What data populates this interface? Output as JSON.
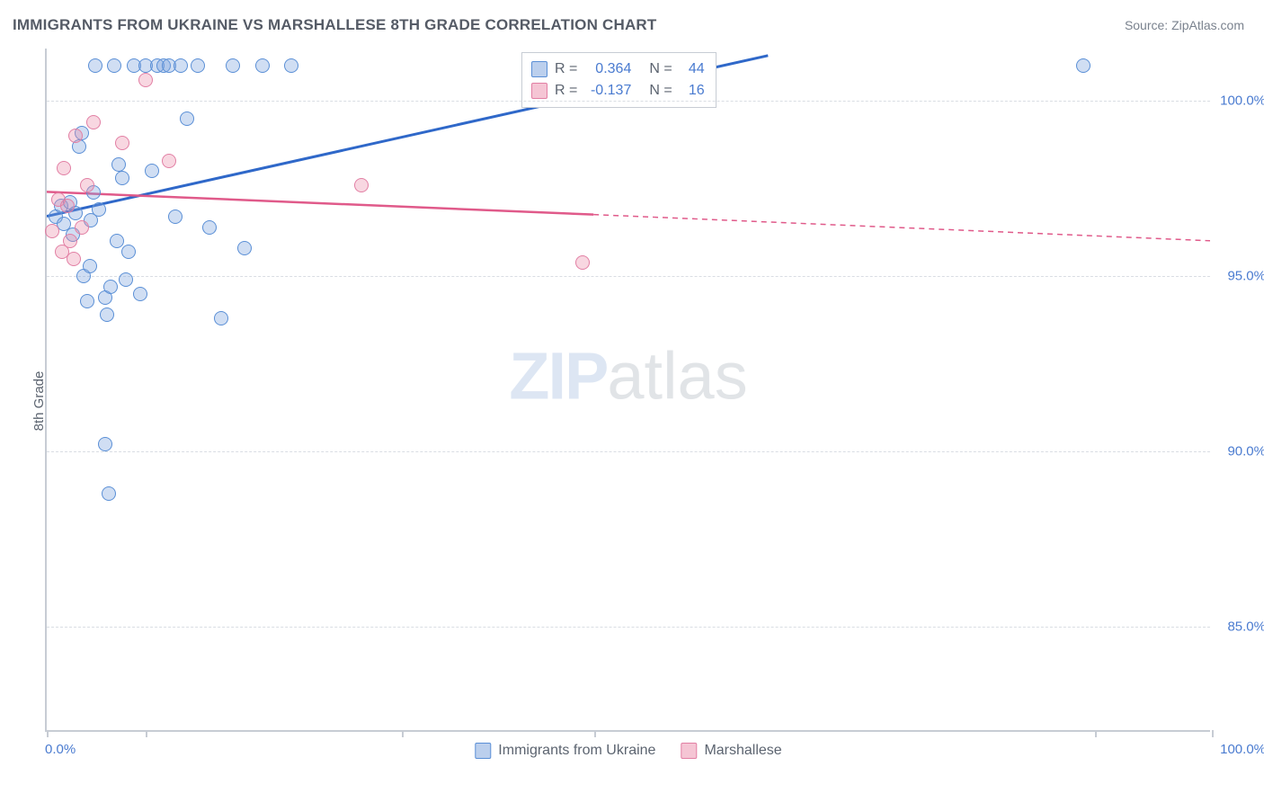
{
  "title": "IMMIGRANTS FROM UKRAINE VS MARSHALLESE 8TH GRADE CORRELATION CHART",
  "source_label": "Source: ",
  "source_name": "ZipAtlas.com",
  "ylabel": "8th Grade",
  "watermark_a": "ZIP",
  "watermark_b": "atlas",
  "chart": {
    "type": "scatter-correlation",
    "background_color": "#ffffff",
    "axis_color": "#c7ccd4",
    "grid_color": "#d9dde3",
    "text_color": "#5c6470",
    "value_color": "#4a7bd0",
    "xlim": [
      0,
      100
    ],
    "ylim": [
      82,
      101.5
    ],
    "xticks": [
      0,
      8.5,
      30.5,
      47,
      90,
      100
    ],
    "xtick_labels": {
      "0": "0.0%",
      "100": "100.0%"
    },
    "yticks": [
      85,
      90,
      95,
      100
    ],
    "ytick_labels": [
      "85.0%",
      "90.0%",
      "95.0%",
      "100.0%"
    ],
    "marker_size": 16,
    "series": [
      {
        "key": "ukraine",
        "label": "Immigrants from Ukraine",
        "color_fill": "rgba(120,160,220,0.35)",
        "color_stroke": "#5a8fd6",
        "R": "0.364",
        "N": "44",
        "trend": {
          "x1": 0,
          "y1": 96.7,
          "x2": 62,
          "y2": 101.3,
          "dashed_from_x": 62,
          "stroke": "#2f68c9",
          "width": 3
        },
        "points": [
          [
            0.8,
            96.7
          ],
          [
            1.2,
            97.0
          ],
          [
            1.5,
            96.5
          ],
          [
            2.0,
            97.1
          ],
          [
            2.2,
            96.2
          ],
          [
            2.5,
            96.8
          ],
          [
            2.8,
            98.7
          ],
          [
            3.0,
            99.1
          ],
          [
            3.2,
            95.0
          ],
          [
            3.5,
            94.3
          ],
          [
            3.8,
            96.6
          ],
          [
            4.0,
            97.4
          ],
          [
            4.2,
            101.0
          ],
          [
            4.5,
            96.9
          ],
          [
            5.0,
            94.4
          ],
          [
            5.2,
            93.9
          ],
          [
            5.5,
            94.7
          ],
          [
            5.8,
            101.0
          ],
          [
            6.0,
            96.0
          ],
          [
            6.2,
            98.2
          ],
          [
            6.5,
            97.8
          ],
          [
            7.0,
            95.7
          ],
          [
            7.5,
            101.0
          ],
          [
            8.0,
            94.5
          ],
          [
            8.5,
            101.0
          ],
          [
            9.0,
            98.0
          ],
          [
            9.5,
            101.0
          ],
          [
            10.0,
            101.0
          ],
          [
            10.5,
            101.0
          ],
          [
            11.0,
            96.7
          ],
          [
            11.5,
            101.0
          ],
          [
            12.0,
            99.5
          ],
          [
            13.0,
            101.0
          ],
          [
            14.0,
            96.4
          ],
          [
            15.0,
            93.8
          ],
          [
            16.0,
            101.0
          ],
          [
            17.0,
            95.8
          ],
          [
            18.5,
            101.0
          ],
          [
            21.0,
            101.0
          ],
          [
            89.0,
            101.0
          ],
          [
            5.0,
            90.2
          ],
          [
            5.3,
            88.8
          ],
          [
            3.7,
            95.3
          ],
          [
            6.8,
            94.9
          ]
        ]
      },
      {
        "key": "marshallese",
        "label": "Marshallese",
        "color_fill": "rgba(235,140,170,0.35)",
        "color_stroke": "#e27fa4",
        "R": "-0.137",
        "N": "16",
        "trend": {
          "x1": 0,
          "y1": 97.4,
          "x2": 47,
          "y2": 96.75,
          "dashed_to_x": 100,
          "dashed_y2": 96.0,
          "stroke": "#e05a8a",
          "width": 2.5
        },
        "points": [
          [
            0.5,
            96.3
          ],
          [
            1.0,
            97.2
          ],
          [
            1.3,
            95.7
          ],
          [
            1.5,
            98.1
          ],
          [
            1.8,
            97.0
          ],
          [
            2.0,
            96.0
          ],
          [
            2.3,
            95.5
          ],
          [
            2.5,
            99.0
          ],
          [
            3.0,
            96.4
          ],
          [
            3.5,
            97.6
          ],
          [
            4.0,
            99.4
          ],
          [
            6.5,
            98.8
          ],
          [
            8.5,
            100.6
          ],
          [
            10.5,
            98.3
          ],
          [
            27.0,
            97.6
          ],
          [
            46.0,
            95.4
          ]
        ]
      }
    ]
  },
  "legend_bottom": {
    "items": [
      "Immigrants from Ukraine",
      "Marshallese"
    ]
  },
  "correlation_legend": {
    "r_label": "R =",
    "n_label": "N ="
  }
}
